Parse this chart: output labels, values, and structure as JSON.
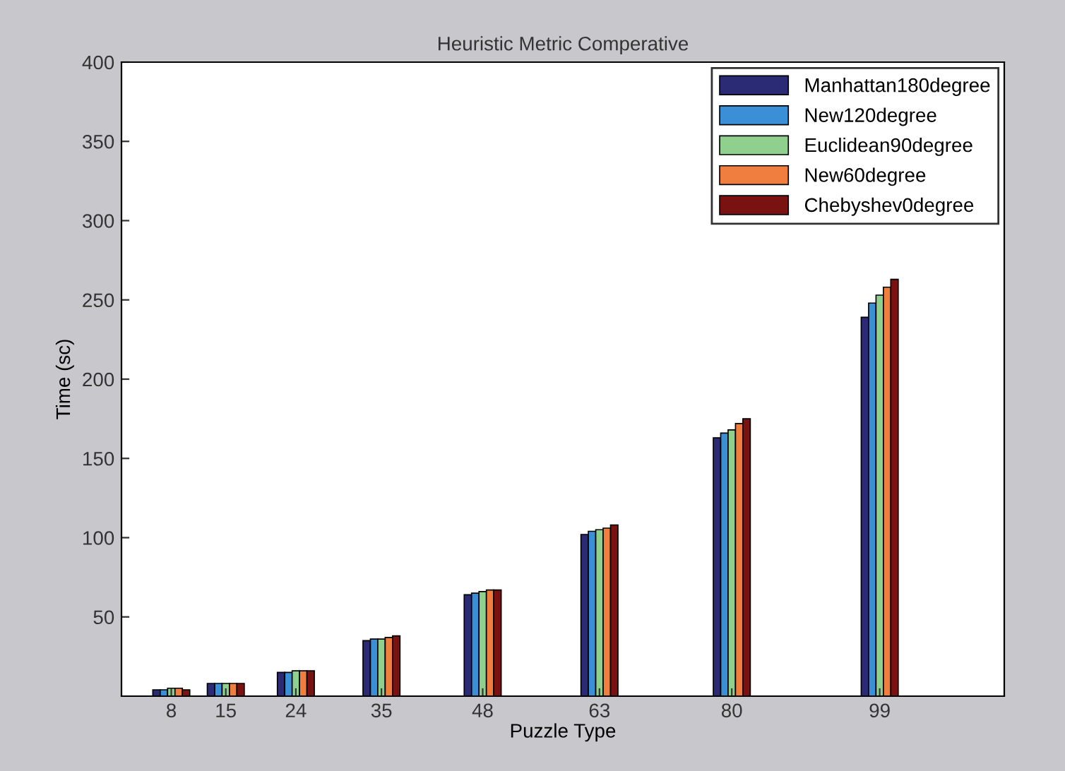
{
  "chart_data": {
    "type": "bar",
    "title": "Heuristic Metric Comperative",
    "xlabel": "Puzzle Type",
    "ylabel": "Time (sc)",
    "x": [
      8,
      15,
      24,
      35,
      48,
      63,
      80,
      99
    ],
    "series": [
      {
        "name": "Manhattan180degree",
        "color": "#2b2a74",
        "values": [
          4,
          8,
          15,
          35,
          64,
          102,
          163,
          239
        ]
      },
      {
        "name": "New120degree",
        "color": "#3a8fd6",
        "values": [
          4,
          8,
          15,
          36,
          65,
          104,
          166,
          248
        ]
      },
      {
        "name": "Euclidean90degree",
        "color": "#8fd08f",
        "values": [
          5,
          8,
          16,
          36,
          66,
          105,
          168,
          253
        ]
      },
      {
        "name": "New60degree",
        "color": "#f07f3f",
        "values": [
          5,
          8,
          16,
          37,
          67,
          106,
          172,
          258
        ]
      },
      {
        "name": "Chebyshev0degree",
        "color": "#7a1212",
        "values": [
          4,
          8,
          16,
          38,
          67,
          108,
          175,
          263
        ]
      }
    ],
    "xlim": [
      1.6,
      115
    ],
    "xticks": [
      8,
      15,
      24,
      35,
      48,
      63,
      80,
      99
    ],
    "ylim": [
      0,
      400
    ],
    "yticks": [
      50,
      100,
      150,
      200,
      250,
      300,
      350,
      400
    ],
    "grid": false,
    "legend": "top right"
  }
}
